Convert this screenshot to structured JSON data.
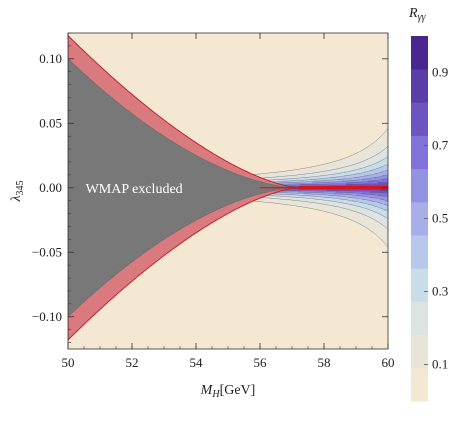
{
  "chart_data": {
    "type": "heatmap",
    "title": "",
    "xlabel": "M_H[GeV]",
    "xlabel_main": "M",
    "xlabel_sub": "H",
    "xlabel_unit": "[GeV]",
    "ylabel": "λ345",
    "ylabel_main": "λ",
    "ylabel_sub": "345",
    "xlim": [
      50,
      60
    ],
    "ylim": [
      -0.125,
      0.12
    ],
    "xticks": [
      50,
      52,
      54,
      56,
      58,
      60
    ],
    "xtick_labels": [
      "50",
      "52",
      "54",
      "56",
      "58",
      "60"
    ],
    "yticks": [
      -0.1,
      -0.05,
      0.0,
      0.05,
      0.1
    ],
    "ytick_labels": [
      "−0.10",
      "−0.05",
      "0.00",
      "0.05",
      "0.10"
    ],
    "colorbar": {
      "label": "R_γγ",
      "label_main": "R",
      "label_sub": "γγ",
      "range": [
        0.0,
        1.0
      ],
      "levels": [
        0.0,
        0.1,
        0.2,
        0.3,
        0.4,
        0.5,
        0.6,
        0.7,
        0.8,
        0.9,
        1.0
      ],
      "tick_values": [
        0.1,
        0.3,
        0.5,
        0.7,
        0.9
      ],
      "tick_labels": [
        "0.1",
        "0.3",
        "0.5",
        "0.7",
        "0.9"
      ],
      "colors": [
        "#f4e8d2",
        "#e8e4d8",
        "#dce3e0",
        "#c8dde8",
        "#b8c8ea",
        "#a8aee8",
        "#9292e2",
        "#8072d8",
        "#6c55c2",
        "#5a3ea8",
        "#4a2690"
      ]
    },
    "excluded_region": {
      "label": "WMAP excluded",
      "fill_color": "#787878",
      "band_color": "#d97a7e",
      "boundary_color": "#c81e30"
    },
    "highlight_line": {
      "color": "#e0101e",
      "x_start": 57.2,
      "x_end": 60,
      "y": 0.0
    }
  }
}
